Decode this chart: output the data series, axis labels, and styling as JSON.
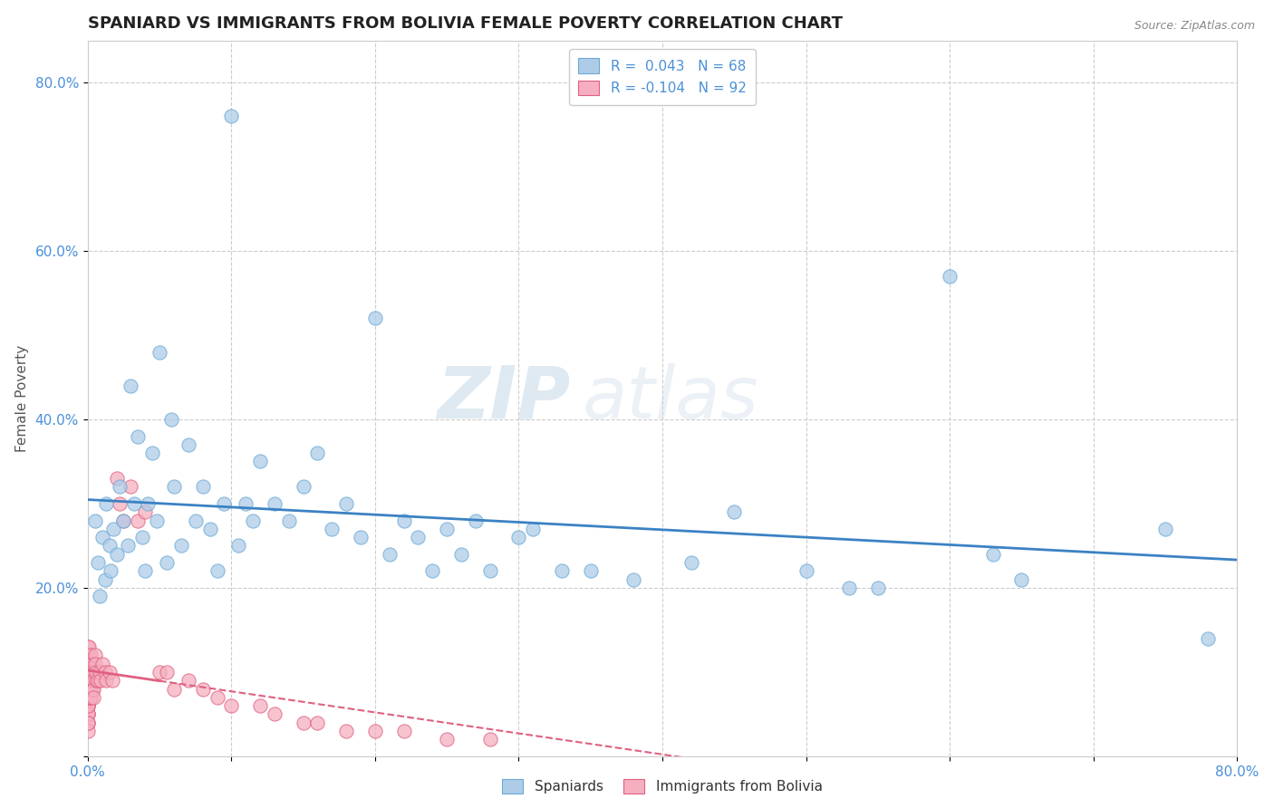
{
  "title": "SPANIARD VS IMMIGRANTS FROM BOLIVIA FEMALE POVERTY CORRELATION CHART",
  "source": "Source: ZipAtlas.com",
  "ylabel": "Female Poverty",
  "xlim": [
    0.0,
    0.8
  ],
  "ylim": [
    0.0,
    0.85
  ],
  "xticks": [
    0.0,
    0.1,
    0.2,
    0.3,
    0.4,
    0.5,
    0.6,
    0.7,
    0.8
  ],
  "xticklabels": [
    "0.0%",
    "",
    "",
    "",
    "",
    "",
    "",
    "",
    "80.0%"
  ],
  "yticks": [
    0.0,
    0.2,
    0.4,
    0.6,
    0.8
  ],
  "yticklabels": [
    "",
    "20.0%",
    "40.0%",
    "60.0%",
    "80.0%"
  ],
  "spaniards_R": 0.043,
  "spaniards_N": 68,
  "bolivia_R": -0.104,
  "bolivia_N": 92,
  "spaniard_color": "#aecce8",
  "bolivia_color": "#f5afc0",
  "spaniard_edge": "#6aaad4",
  "bolivia_edge": "#e06080",
  "regression_spaniard_color": "#3b82c4",
  "regression_bolivia_color": "#e06080",
  "watermark_zip": "ZIP",
  "watermark_atlas": "atlas",
  "legend_spaniard_label": "Spaniards",
  "legend_bolivia_label": "Immigrants from Bolivia",
  "background_color": "#ffffff",
  "grid_color": "#cccccc",
  "spaniards_x": [
    0.005,
    0.007,
    0.008,
    0.01,
    0.012,
    0.013,
    0.015,
    0.016,
    0.018,
    0.02,
    0.022,
    0.025,
    0.028,
    0.03,
    0.032,
    0.035,
    0.038,
    0.04,
    0.042,
    0.045,
    0.048,
    0.05,
    0.055,
    0.058,
    0.06,
    0.065,
    0.07,
    0.075,
    0.08,
    0.085,
    0.09,
    0.095,
    0.1,
    0.105,
    0.11,
    0.115,
    0.12,
    0.13,
    0.14,
    0.15,
    0.16,
    0.17,
    0.18,
    0.19,
    0.2,
    0.21,
    0.22,
    0.23,
    0.24,
    0.25,
    0.26,
    0.27,
    0.28,
    0.3,
    0.31,
    0.33,
    0.35,
    0.38,
    0.42,
    0.45,
    0.5,
    0.53,
    0.55,
    0.6,
    0.63,
    0.65,
    0.75,
    0.78
  ],
  "spaniards_y": [
    0.28,
    0.23,
    0.19,
    0.26,
    0.21,
    0.3,
    0.25,
    0.22,
    0.27,
    0.24,
    0.32,
    0.28,
    0.25,
    0.44,
    0.3,
    0.38,
    0.26,
    0.22,
    0.3,
    0.36,
    0.28,
    0.48,
    0.23,
    0.4,
    0.32,
    0.25,
    0.37,
    0.28,
    0.32,
    0.27,
    0.22,
    0.3,
    0.76,
    0.25,
    0.3,
    0.28,
    0.35,
    0.3,
    0.28,
    0.32,
    0.36,
    0.27,
    0.3,
    0.26,
    0.52,
    0.24,
    0.28,
    0.26,
    0.22,
    0.27,
    0.24,
    0.28,
    0.22,
    0.26,
    0.27,
    0.22,
    0.22,
    0.21,
    0.23,
    0.29,
    0.22,
    0.2,
    0.2,
    0.57,
    0.24,
    0.21,
    0.27,
    0.14
  ],
  "bolivia_x": [
    0.0,
    0.0,
    0.0,
    0.0,
    0.0,
    0.0,
    0.0,
    0.0,
    0.0,
    0.0,
    0.0,
    0.0,
    0.0,
    0.0,
    0.0,
    0.0,
    0.0,
    0.0,
    0.0,
    0.0,
    0.0,
    0.0,
    0.0,
    0.0,
    0.0,
    0.0,
    0.0,
    0.0,
    0.0,
    0.0,
    0.001,
    0.001,
    0.001,
    0.001,
    0.001,
    0.001,
    0.001,
    0.001,
    0.001,
    0.001,
    0.002,
    0.002,
    0.002,
    0.002,
    0.002,
    0.002,
    0.002,
    0.002,
    0.002,
    0.002,
    0.003,
    0.003,
    0.003,
    0.003,
    0.004,
    0.004,
    0.004,
    0.004,
    0.005,
    0.005,
    0.006,
    0.006,
    0.007,
    0.008,
    0.009,
    0.01,
    0.012,
    0.013,
    0.015,
    0.017,
    0.02,
    0.022,
    0.025,
    0.03,
    0.035,
    0.04,
    0.05,
    0.055,
    0.06,
    0.07,
    0.08,
    0.09,
    0.1,
    0.12,
    0.13,
    0.15,
    0.16,
    0.18,
    0.2,
    0.22,
    0.25,
    0.28
  ],
  "bolivia_y": [
    0.07,
    0.08,
    0.09,
    0.1,
    0.11,
    0.12,
    0.13,
    0.07,
    0.06,
    0.08,
    0.09,
    0.1,
    0.11,
    0.05,
    0.06,
    0.07,
    0.08,
    0.09,
    0.1,
    0.04,
    0.05,
    0.06,
    0.07,
    0.08,
    0.04,
    0.05,
    0.06,
    0.07,
    0.03,
    0.04,
    0.12,
    0.1,
    0.09,
    0.11,
    0.08,
    0.07,
    0.13,
    0.09,
    0.11,
    0.08,
    0.1,
    0.09,
    0.08,
    0.11,
    0.07,
    0.1,
    0.09,
    0.08,
    0.07,
    0.12,
    0.1,
    0.09,
    0.08,
    0.11,
    0.1,
    0.09,
    0.08,
    0.07,
    0.12,
    0.11,
    0.09,
    0.1,
    0.09,
    0.1,
    0.09,
    0.11,
    0.1,
    0.09,
    0.1,
    0.09,
    0.33,
    0.3,
    0.28,
    0.32,
    0.28,
    0.29,
    0.1,
    0.1,
    0.08,
    0.09,
    0.08,
    0.07,
    0.06,
    0.06,
    0.05,
    0.04,
    0.04,
    0.03,
    0.03,
    0.03,
    0.02,
    0.02
  ]
}
